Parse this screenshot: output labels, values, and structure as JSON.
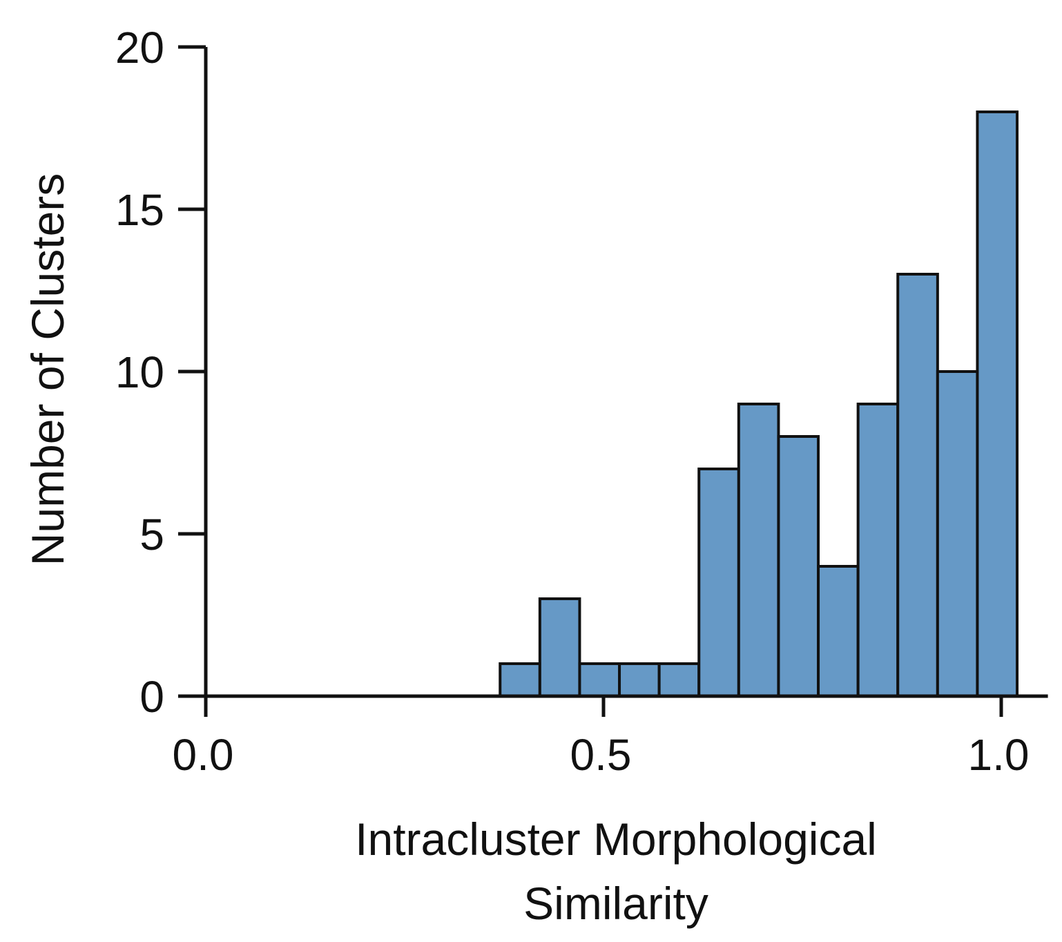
{
  "chart_data": {
    "type": "bar",
    "title": "",
    "xlabel_lines": [
      "Intracluster Morphological",
      "Similarity"
    ],
    "ylabel": "Number of Clusters",
    "xlim": [
      0.0,
      1.05
    ],
    "ylim": [
      0,
      20
    ],
    "x_ticks": [
      {
        "value": 0.0,
        "label": "0.0"
      },
      {
        "value": 0.5,
        "label": "0.5"
      },
      {
        "value": 1.0,
        "label": "1.0"
      }
    ],
    "y_ticks": [
      {
        "value": 0,
        "label": "0"
      },
      {
        "value": 5,
        "label": "5"
      },
      {
        "value": 10,
        "label": "10"
      },
      {
        "value": 15,
        "label": "15"
      },
      {
        "value": 20,
        "label": "20"
      }
    ],
    "bins": [
      {
        "x0": 0.37,
        "x1": 0.42,
        "count": 1
      },
      {
        "x0": 0.42,
        "x1": 0.47,
        "count": 3
      },
      {
        "x0": 0.47,
        "x1": 0.52,
        "count": 1
      },
      {
        "x0": 0.52,
        "x1": 0.57,
        "count": 1
      },
      {
        "x0": 0.57,
        "x1": 0.62,
        "count": 1
      },
      {
        "x0": 0.62,
        "x1": 0.67,
        "count": 7
      },
      {
        "x0": 0.67,
        "x1": 0.72,
        "count": 9
      },
      {
        "x0": 0.72,
        "x1": 0.77,
        "count": 8
      },
      {
        "x0": 0.77,
        "x1": 0.82,
        "count": 4
      },
      {
        "x0": 0.82,
        "x1": 0.87,
        "count": 9
      },
      {
        "x0": 0.87,
        "x1": 0.92,
        "count": 13
      },
      {
        "x0": 0.92,
        "x1": 0.97,
        "count": 10
      },
      {
        "x0": 0.97,
        "x1": 1.02,
        "count": 18
      }
    ],
    "bar_color": "#6699c6",
    "bar_edge_color": "#111111",
    "grid": false,
    "legend": "none"
  }
}
